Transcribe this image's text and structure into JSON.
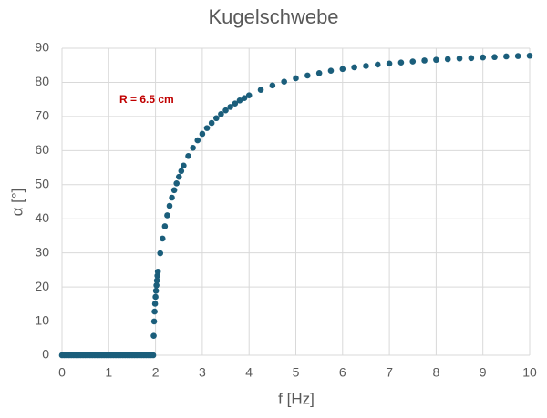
{
  "chart_data": {
    "type": "scatter",
    "title": "Kugelschwebe",
    "x_label": "f [Hz]",
    "y_label": "α [°]",
    "annotation": "R = 6.5 cm",
    "color": "#1b5e7b",
    "annotation_color": "#c00000",
    "x": [
      0,
      0.05,
      0.1,
      0.15,
      0.2,
      0.25,
      0.3,
      0.35,
      0.4,
      0.45,
      0.5,
      0.55,
      0.6,
      0.65,
      0.7,
      0.75,
      0.8,
      0.85,
      0.9,
      0.95,
      1,
      1.05,
      1.1,
      1.15,
      1.2,
      1.25,
      1.3,
      1.35,
      1.4,
      1.45,
      1.5,
      1.55,
      1.6,
      1.65,
      1.7,
      1.75,
      1.8,
      1.85,
      1.9,
      1.95,
      1.96,
      1.97,
      1.98,
      1.99,
      2,
      2.01,
      2.02,
      2.03,
      2.04,
      2.05,
      2.1,
      2.15,
      2.2,
      2.25,
      2.3,
      2.35,
      2.4,
      2.45,
      2.5,
      2.55,
      2.6,
      2.7,
      2.8,
      2.9,
      3,
      3.1,
      3.2,
      3.3,
      3.4,
      3.5,
      3.6,
      3.7,
      3.8,
      3.9,
      4,
      4.25,
      4.5,
      4.75,
      5,
      5.25,
      5.5,
      5.75,
      6,
      6.25,
      6.5,
      6.75,
      7,
      7.25,
      7.5,
      7.75,
      8,
      8.25,
      8.5,
      8.75,
      9,
      9.25,
      9.5,
      9.75,
      10
    ],
    "values": [
      0,
      0,
      0,
      0,
      0,
      0,
      0,
      0,
      0,
      0,
      0,
      0,
      0,
      0,
      0,
      0,
      0,
      0,
      0,
      0,
      0,
      0,
      0,
      0,
      0,
      0,
      0,
      0,
      0,
      0,
      0,
      0,
      0,
      0,
      0,
      0,
      0,
      0,
      0,
      0,
      5.7,
      9.9,
      12.8,
      15.1,
      17.1,
      18.9,
      20.5,
      21.9,
      23.3,
      24.5,
      29.9,
      34.2,
      37.8,
      41.0,
      43.8,
      46.2,
      48.4,
      50.4,
      52.3,
      54.0,
      55.6,
      58.4,
      60.8,
      63.0,
      64.9,
      66.6,
      68.1,
      69.5,
      70.7,
      71.8,
      72.8,
      73.8,
      74.7,
      75.4,
      76.2,
      77.8,
      79.1,
      80.2,
      81.2,
      82.0,
      82.7,
      83.4,
      83.9,
      84.4,
      84.8,
      85.2,
      85.5,
      85.8,
      86.1,
      86.4,
      86.6,
      86.8,
      87.0,
      87.1,
      87.3,
      87.4,
      87.6,
      87.7,
      87.8
    ],
    "xlim": [
      0,
      10
    ],
    "xticks": [
      0,
      1,
      2,
      3,
      4,
      5,
      6,
      7,
      8,
      9,
      10
    ],
    "ylim": [
      0,
      90
    ],
    "yticks": [
      0,
      10,
      20,
      30,
      40,
      50,
      60,
      70,
      80,
      90
    ],
    "grid": true
  }
}
